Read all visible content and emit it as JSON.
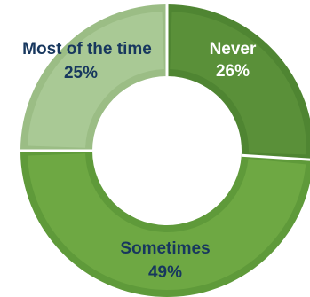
{
  "chart_data": {
    "type": "pie",
    "variant": "donut",
    "categories": [
      "Never",
      "Sometimes",
      "Most of the time"
    ],
    "values": [
      26,
      49,
      25
    ],
    "labels": [
      {
        "name": "Never",
        "percent": "26%"
      },
      {
        "name": "Sometimes",
        "percent": "49%"
      },
      {
        "name": "Most of the time",
        "percent": "25%"
      }
    ],
    "colors": [
      "#5a9039",
      "#6ea843",
      "#a9c995"
    ],
    "edge_colors": [
      "#4f8532",
      "#5f9a3a",
      "#9bbd85"
    ],
    "label_colors": [
      "#ffffff",
      "#17375e",
      "#17375e"
    ],
    "start_angle_deg": 0,
    "direction": "clockwise",
    "legend": "none"
  }
}
